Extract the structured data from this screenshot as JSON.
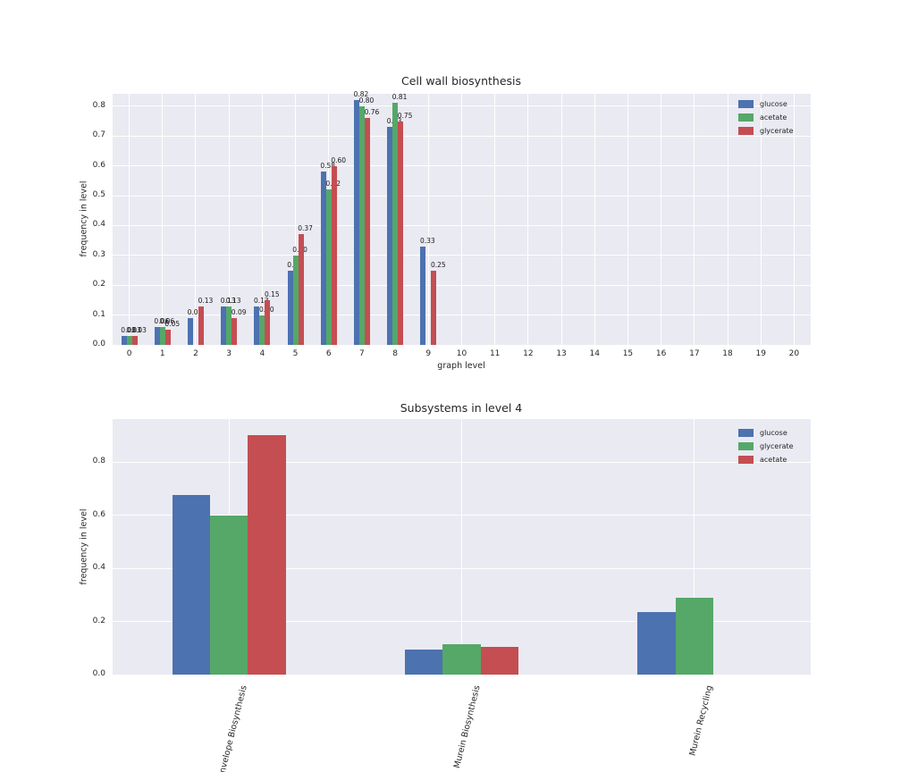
{
  "colors": {
    "figure_bg": "#ffffff",
    "plot_bg": "#eaeaf2",
    "grid": "#ffffff",
    "text": "#262626",
    "blue": "#4c72b0",
    "green": "#55a868",
    "red": "#c44e52"
  },
  "chart_data": [
    {
      "type": "bar",
      "title": "Cell wall biosynthesis",
      "xlabel": "graph level",
      "ylabel": "frequency in level",
      "x": [
        0,
        1,
        2,
        3,
        4,
        5,
        6,
        7,
        8,
        9,
        10,
        11,
        12,
        13,
        14,
        15,
        16,
        17,
        18,
        19,
        20
      ],
      "yticks": [
        "0.0",
        "0.1",
        "0.2",
        "0.3",
        "0.4",
        "0.5",
        "0.6",
        "0.7",
        "0.8"
      ],
      "ylim": [
        0,
        0.84
      ],
      "grid": true,
      "bar_value_labels": true,
      "legend_position": "upper right",
      "series": [
        {
          "name": "glucose",
          "color": "#4c72b0",
          "values": [
            0.03,
            0.06,
            0.09,
            0.13,
            0.13,
            0.25,
            0.58,
            0.82,
            0.73,
            0.33,
            0,
            0,
            0,
            0,
            0,
            0,
            0,
            0,
            0,
            0,
            0
          ]
        },
        {
          "name": "acetate",
          "color": "#55a868",
          "values": [
            0.03,
            0.06,
            0,
            0.13,
            0.1,
            0.3,
            0.52,
            0.8,
            0.81,
            0,
            0,
            0,
            0,
            0,
            0,
            0,
            0,
            0,
            0,
            0,
            0
          ]
        },
        {
          "name": "glycerate",
          "color": "#c44e52",
          "values": [
            0.03,
            0.05,
            0.13,
            0.09,
            0.15,
            0.37,
            0.6,
            0.76,
            0.75,
            0.25,
            0,
            0,
            0,
            0,
            0,
            0,
            0,
            0,
            0,
            0,
            0
          ]
        }
      ]
    },
    {
      "type": "bar",
      "title": "Subsystems in level 4",
      "xlabel": "",
      "ylabel": "frequency in level",
      "categories": [
        "Cell Envelope Biosynthesis",
        "Murein Biosynthesis",
        "Murein Recycling"
      ],
      "yticks": [
        "0.0",
        "0.2",
        "0.4",
        "0.6",
        "0.8"
      ],
      "ylim": [
        0,
        0.96
      ],
      "grid": true,
      "bar_value_labels": false,
      "legend_position": "upper right",
      "series": [
        {
          "name": "glucose",
          "color": "#4c72b0",
          "values": [
            0.675,
            0.095,
            0.235
          ]
        },
        {
          "name": "glycerate",
          "color": "#55a868",
          "values": [
            0.6,
            0.115,
            0.29
          ]
        },
        {
          "name": "acetate",
          "color": "#c44e52",
          "values": [
            0.9,
            0.105,
            0
          ]
        }
      ]
    }
  ]
}
